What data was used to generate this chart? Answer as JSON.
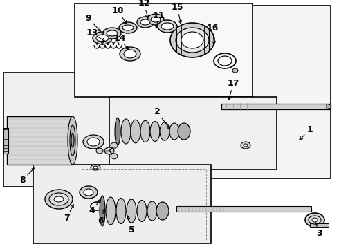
{
  "bg_color": "#ffffff",
  "line_color": "#000000",
  "fig_width": 4.9,
  "fig_height": 3.6,
  "dpi": 100,
  "annotations": [
    [
      "1",
      442,
      193,
      430,
      205
    ],
    [
      "2",
      232,
      168,
      248,
      190
    ],
    [
      "3",
      459,
      330,
      455,
      318
    ],
    [
      "4",
      138,
      298,
      148,
      285
    ],
    [
      "5",
      188,
      325,
      183,
      308
    ],
    [
      "6",
      148,
      312,
      152,
      298
    ],
    [
      "7",
      100,
      308,
      108,
      292
    ],
    [
      "8",
      38,
      255,
      52,
      240
    ],
    [
      "9",
      133,
      32,
      148,
      48
    ],
    [
      "10",
      175,
      22,
      185,
      38
    ],
    [
      "11",
      228,
      30,
      225,
      45
    ],
    [
      "12",
      210,
      12,
      215,
      30
    ],
    [
      "13",
      140,
      52,
      155,
      62
    ],
    [
      "14",
      178,
      62,
      188,
      75
    ],
    [
      "15",
      258,
      18,
      262,
      38
    ],
    [
      "16",
      308,
      48,
      310,
      68
    ],
    [
      "17",
      335,
      128,
      330,
      148
    ]
  ]
}
